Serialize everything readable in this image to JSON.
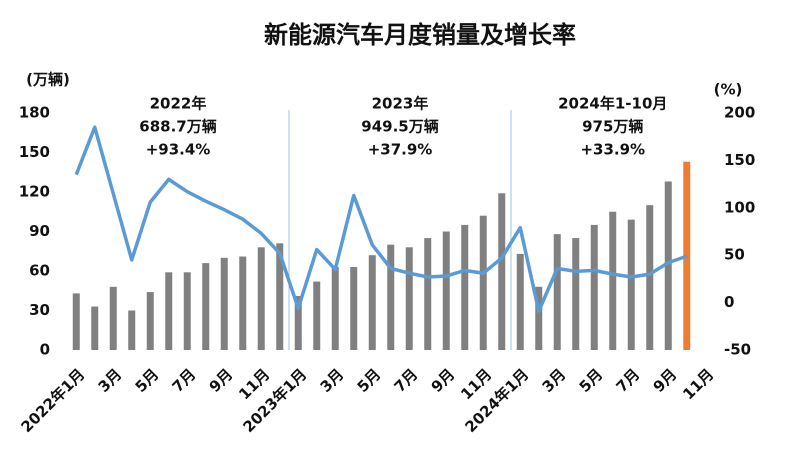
{
  "chart_data": {
    "type": "bar_line",
    "title": "新能源汽车月度销量及增长率",
    "y_label": "(万辆)",
    "y2_label": "(%)",
    "categories": [
      "2022年1月",
      null,
      "3月",
      null,
      "5月",
      null,
      "7月",
      null,
      "9月",
      null,
      "11月",
      null,
      "2023年1月",
      null,
      "3月",
      null,
      "5月",
      null,
      "7月",
      null,
      "9月",
      null,
      "11月",
      null,
      "2024年1月",
      null,
      "3月",
      null,
      "5月",
      null,
      "7月",
      null,
      "9月",
      null,
      "11月"
    ],
    "series": [
      {
        "type": "bar",
        "color": "#808080",
        "colors": [
          "#808080",
          "#808080",
          "#808080",
          "#808080",
          "#808080",
          "#808080",
          "#808080",
          "#808080",
          "#808080",
          "#808080",
          "#808080",
          "#808080",
          "#808080",
          "#808080",
          "#808080",
          "#808080",
          "#808080",
          "#808080",
          "#808080",
          "#808080",
          "#808080",
          "#808080",
          "#808080",
          "#808080",
          "#808080",
          "#808080",
          "#808080",
          "#808080",
          "#808080",
          "#808080",
          "#808080",
          "#808080",
          "#808080",
          "#ed7d31",
          null
        ],
        "values": [
          43,
          33,
          48,
          30,
          44,
          59,
          59,
          66,
          70,
          71,
          78,
          81,
          41,
          52,
          63,
          63,
          72,
          80,
          78,
          85,
          90,
          95,
          102,
          119,
          73,
          48,
          88,
          85,
          95,
          105,
          99,
          110,
          128,
          143,
          null
        ]
      },
      {
        "type": "line",
        "axis": "y2",
        "color": "#5b9bd5",
        "values": [
          135,
          185,
          115,
          45,
          106,
          130,
          117,
          107,
          98,
          88,
          73,
          52,
          -6,
          56,
          35,
          113,
          61,
          36,
          31,
          27,
          28,
          34,
          31,
          47,
          79,
          -9,
          36,
          33,
          34,
          30,
          27,
          30,
          42,
          49,
          null
        ]
      }
    ],
    "ylim": [
      0,
      180
    ],
    "yticks": [
      0,
      30,
      60,
      90,
      120,
      150,
      180
    ],
    "y2lim": [
      -50,
      200
    ],
    "y2ticks": [
      -50,
      0,
      50,
      100,
      150,
      200
    ],
    "annotations": [
      {
        "lines": [
          "2022年",
          "688.7万辆",
          "+93.4%"
        ]
      },
      {
        "lines": [
          "2023年",
          "949.5万辆",
          "+37.9%"
        ]
      },
      {
        "lines": [
          "2024年1-10月",
          "975万辆",
          "+33.9%"
        ]
      }
    ]
  }
}
